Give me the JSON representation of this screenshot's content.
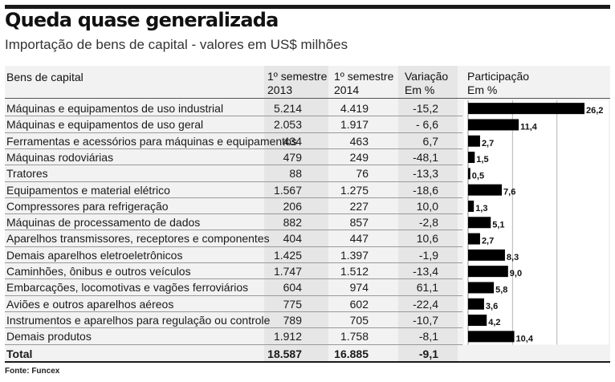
{
  "header": {
    "title": "Queda quase generalizada",
    "subtitle": "Importação de bens de capital - valores em US$ milhões"
  },
  "columns": {
    "name": "Bens de capital",
    "sem2013_line1": "1º semestre",
    "sem2013_line2": "2013",
    "sem2014_line1": "1º semestre",
    "sem2014_line2": "2014",
    "variation_line1": "Variação",
    "variation_line2": "Em %",
    "share_line1": "Participação",
    "share_line2": "Em %"
  },
  "rows": [
    {
      "name": "Máquinas e equipamentos de uso industrial",
      "v2013": "5.214",
      "v2014": "4.419",
      "variation": "-15,2",
      "share": "26,2"
    },
    {
      "name": "Máquinas e equipamentos de uso geral",
      "v2013": "2.053",
      "v2014": "1.917",
      "variation": "- 6,6",
      "share": "11,4"
    },
    {
      "name": "Ferramentas e acessórios para máquinas e equipamentos",
      "v2013": "434",
      "v2014": "463",
      "variation": "6,7",
      "share": "2,7"
    },
    {
      "name": "Máquinas rodoviárias",
      "v2013": "479",
      "v2014": "249",
      "variation": "-48,1",
      "share": "1,5"
    },
    {
      "name": "Tratores",
      "v2013": "88",
      "v2014": "76",
      "variation": "-13,3",
      "share": "0,5"
    },
    {
      "name": "Equipamentos e material elétrico",
      "v2013": "1.567",
      "v2014": "1.275",
      "variation": "-18,6",
      "share": "7,6"
    },
    {
      "name": "Compressores para refrigeração",
      "v2013": "206",
      "v2014": "227",
      "variation": "10,0",
      "share": "1,3"
    },
    {
      "name": "Máquinas de processamento de dados",
      "v2013": "882",
      "v2014": "857",
      "variation": "-2,8",
      "share": "5,1"
    },
    {
      "name": "Aparelhos transmissores, receptores e componentes",
      "v2013": "404",
      "v2014": "447",
      "variation": "10,6",
      "share": "2,7"
    },
    {
      "name": "Demais aparelhos eletroeletrônicos",
      "v2013": "1.425",
      "v2014": "1.397",
      "variation": "-1,9",
      "share": "8,3"
    },
    {
      "name": "Caminhões, ônibus e outros veículos",
      "v2013": "1.747",
      "v2014": "1.512",
      "variation": "-13,4",
      "share": "9,0"
    },
    {
      "name": "Embarcações, locomotivas e vagões ferroviários",
      "v2013": "604",
      "v2014": "974",
      "variation": "61,1",
      "share": "5,8"
    },
    {
      "name": "Aviões e outros aparelhos aéreos",
      "v2013": "775",
      "v2014": "602",
      "variation": "-22,4",
      "share": "3,6"
    },
    {
      "name": "Instrumentos e aparelhos para regulação ou controle",
      "v2013": "789",
      "v2014": "705",
      "variation": "-10,7",
      "share": "4,2"
    },
    {
      "name": "Demais produtos",
      "v2013": "1.912",
      "v2014": "1.758",
      "variation": "-8,1",
      "share": "10,4"
    }
  ],
  "total": {
    "name": "Total",
    "v2013": "18.587",
    "v2014": "16.885",
    "variation": "-9,1"
  },
  "source": "Fonte: Funcex",
  "colors": {
    "bar": "#000000",
    "shade": "#e6e6e6",
    "background": "#f2f2f2"
  },
  "chart_data": {
    "type": "bar",
    "orientation": "horizontal",
    "categories": [
      "Máquinas e equipamentos de uso industrial",
      "Máquinas e equipamentos de uso geral",
      "Ferramentas e acessórios para máquinas e equipamentos",
      "Máquinas rodoviárias",
      "Tratores",
      "Equipamentos e material elétrico",
      "Compressores para refrigeração",
      "Máquinas de processamento de dados",
      "Aparelhos transmissores, receptores e componentes",
      "Demais aparelhos eletroeletrônicos",
      "Caminhões, ônibus e outros veículos",
      "Embarcações, locomotivas e vagões ferroviários",
      "Aviões e outros aparelhos aéreos",
      "Instrumentos e aparelhos para regulação ou controle",
      "Demais produtos"
    ],
    "values": [
      26.2,
      11.4,
      2.7,
      1.5,
      0.5,
      7.6,
      1.3,
      5.1,
      2.7,
      8.3,
      9.0,
      5.8,
      3.6,
      4.2,
      10.4
    ],
    "value_labels": [
      "26,2",
      "11,4",
      "2,7",
      "1,5",
      "0,5",
      "7,6",
      "1,3",
      "5,1",
      "2,7",
      "8,3",
      "9,0",
      "5,8",
      "3,6",
      "4,2",
      "10,4"
    ],
    "title": "Participação",
    "xlabel": "Em %",
    "xlim": [
      0,
      26.2
    ],
    "grid": true,
    "gridlines": [
      10,
      20
    ]
  }
}
